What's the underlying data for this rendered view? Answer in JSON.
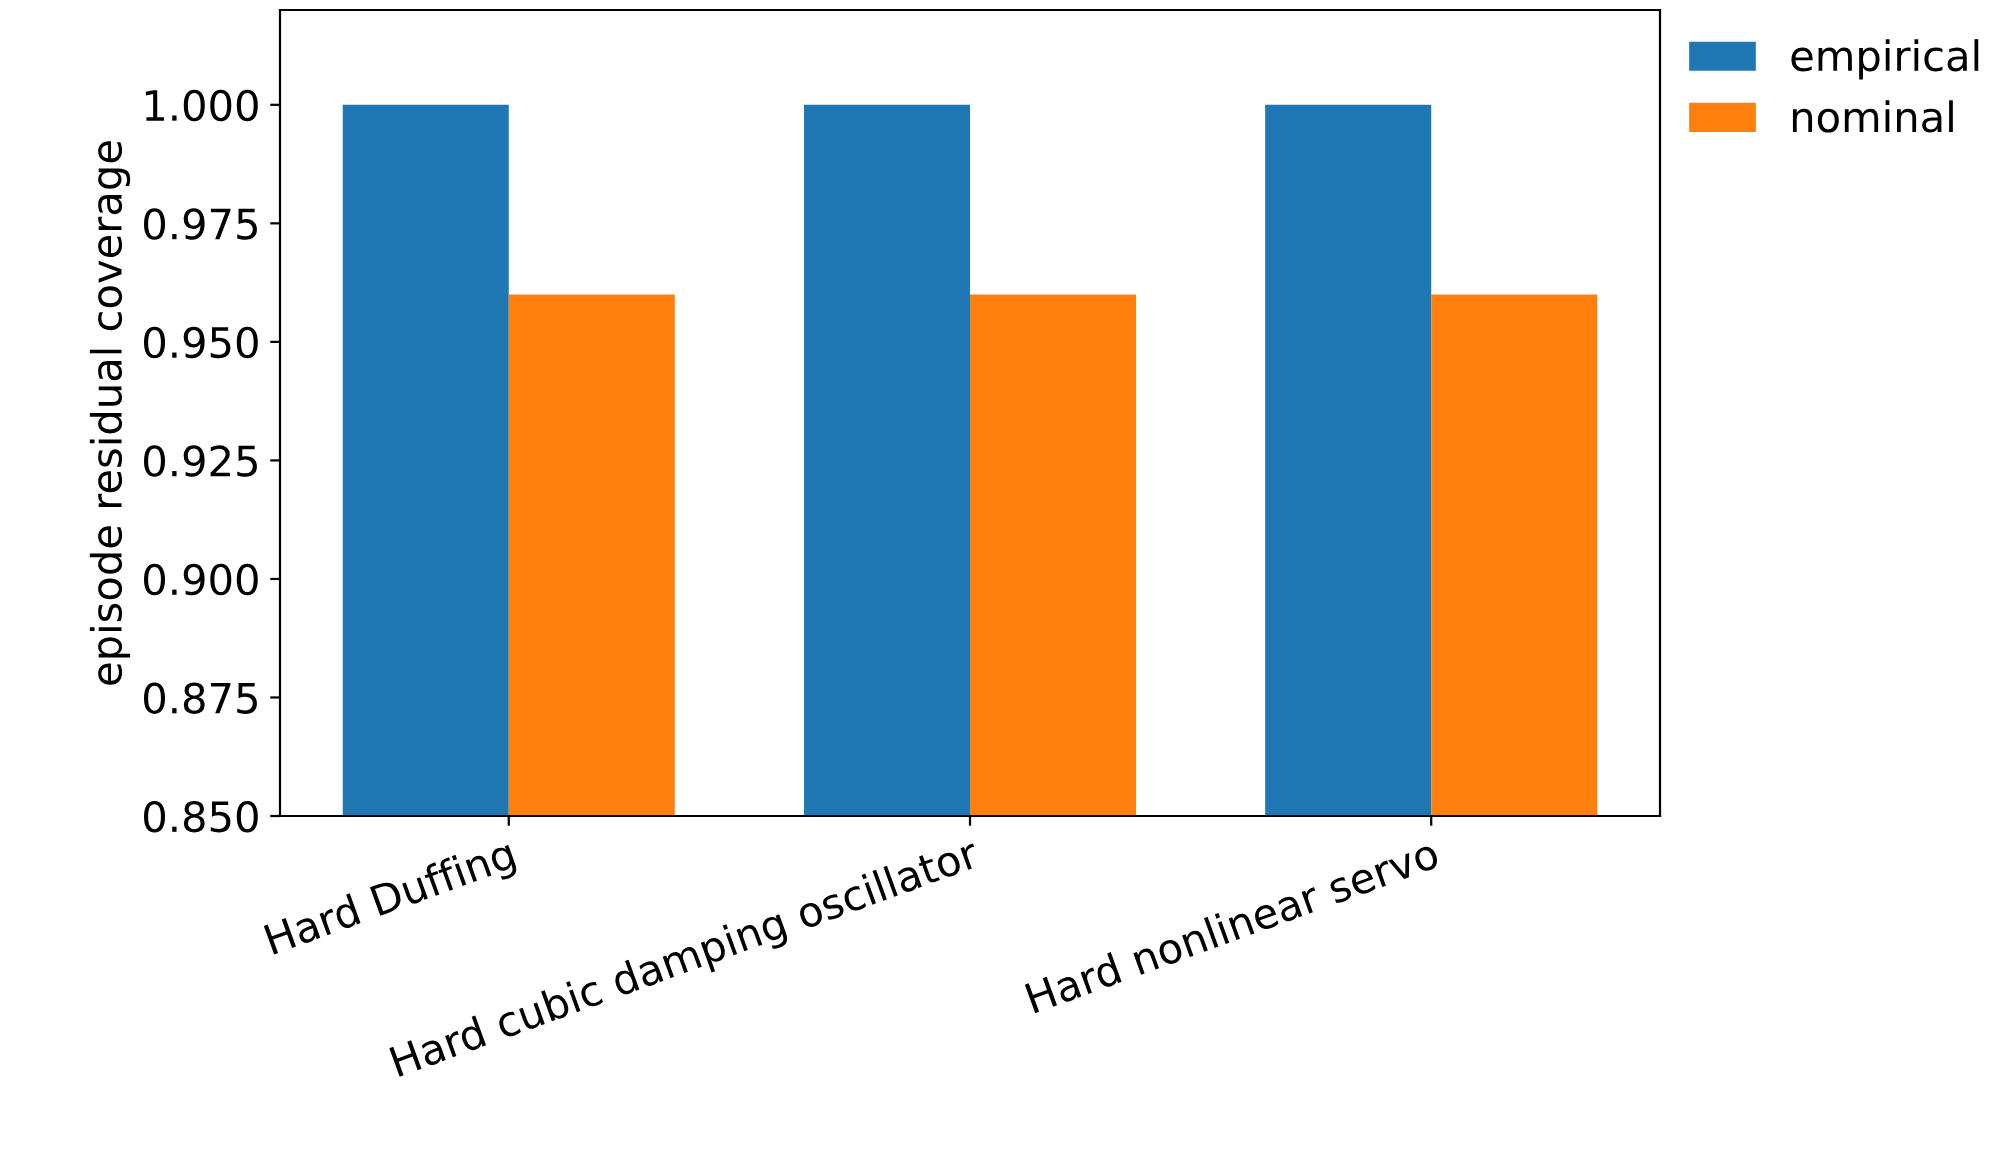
{
  "chart_data": {
    "type": "bar",
    "ylabel": "episode residual coverage",
    "categories": [
      "Hard Duffing",
      "Hard cubic damping oscillator",
      "Hard nonlinear servo"
    ],
    "series": [
      {
        "name": "empirical",
        "color": "#1f77b4",
        "values": [
          1.0,
          1.0,
          1.0
        ]
      },
      {
        "name": "nominal",
        "color": "#ff7f0e",
        "values": [
          0.96,
          0.96,
          0.96
        ]
      }
    ],
    "ylim": [
      0.85,
      1.02
    ],
    "yticks": [
      {
        "value": 0.85,
        "label": "0.850"
      },
      {
        "value": 0.875,
        "label": "0.875"
      },
      {
        "value": 0.9,
        "label": "0.900"
      },
      {
        "value": 0.925,
        "label": "0.925"
      },
      {
        "value": 0.95,
        "label": "0.950"
      },
      {
        "value": 0.975,
        "label": "0.975"
      },
      {
        "value": 1.0,
        "label": "1.000"
      }
    ],
    "grid": false,
    "legend": "top right"
  }
}
